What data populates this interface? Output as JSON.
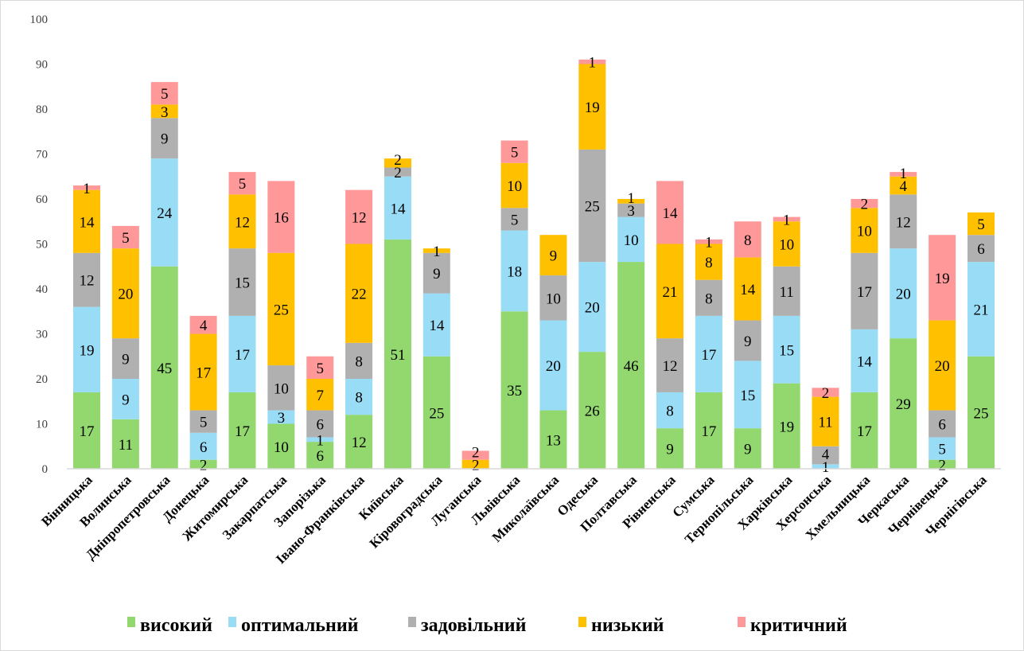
{
  "chart_data": {
    "type": "bar",
    "stacked": true,
    "title": "",
    "xlabel": "",
    "ylabel": "",
    "ylim": [
      0,
      100
    ],
    "yticks": [
      0,
      10,
      20,
      30,
      40,
      50,
      60,
      70,
      80,
      90,
      100
    ],
    "grid": false,
    "legend_position": "bottom",
    "categories": [
      "Вінницька",
      "Волинська",
      "Дніпропетровська",
      "Донецька",
      "Житомирська",
      "Закарпатська",
      "Запорізька",
      "Івано-Франківська",
      "Київська",
      "Кіровоградська",
      "Луганська",
      "Львівська",
      "Миколаївська",
      "Одеська",
      "Полтавська",
      "Рівненська",
      "Сумська",
      "Тернопільська",
      "Харківська",
      "Херсонська",
      "Хмельницька",
      "Черкаська",
      "Чернівецька",
      "Чернігівська"
    ],
    "series": [
      {
        "name": "високий",
        "color": "#92d86f",
        "values": [
          17,
          11,
          45,
          2,
          17,
          10,
          6,
          12,
          51,
          25,
          0,
          35,
          13,
          26,
          46,
          9,
          17,
          9,
          19,
          0,
          17,
          29,
          2,
          25
        ]
      },
      {
        "name": "оптимальний",
        "color": "#99dcf6",
        "values": [
          19,
          9,
          24,
          6,
          17,
          3,
          1,
          8,
          14,
          14,
          0,
          18,
          20,
          20,
          10,
          8,
          17,
          15,
          15,
          1,
          14,
          20,
          5,
          21
        ]
      },
      {
        "name": "задовільний",
        "color": "#b0b0b0",
        "values": [
          12,
          9,
          9,
          5,
          15,
          10,
          6,
          8,
          2,
          9,
          0,
          5,
          10,
          25,
          3,
          12,
          8,
          9,
          11,
          4,
          17,
          12,
          6,
          6
        ]
      },
      {
        "name": "низький",
        "color": "#ffc000",
        "values": [
          14,
          20,
          3,
          17,
          12,
          25,
          7,
          22,
          2,
          1,
          2,
          10,
          9,
          19,
          1,
          21,
          8,
          14,
          10,
          11,
          10,
          4,
          20,
          5
        ]
      },
      {
        "name": "критичний",
        "color": "#ff9999",
        "values": [
          1,
          5,
          5,
          4,
          5,
          16,
          5,
          12,
          0,
          0,
          2,
          5,
          0,
          1,
          0,
          14,
          1,
          8,
          1,
          2,
          2,
          1,
          19,
          0
        ]
      }
    ]
  }
}
